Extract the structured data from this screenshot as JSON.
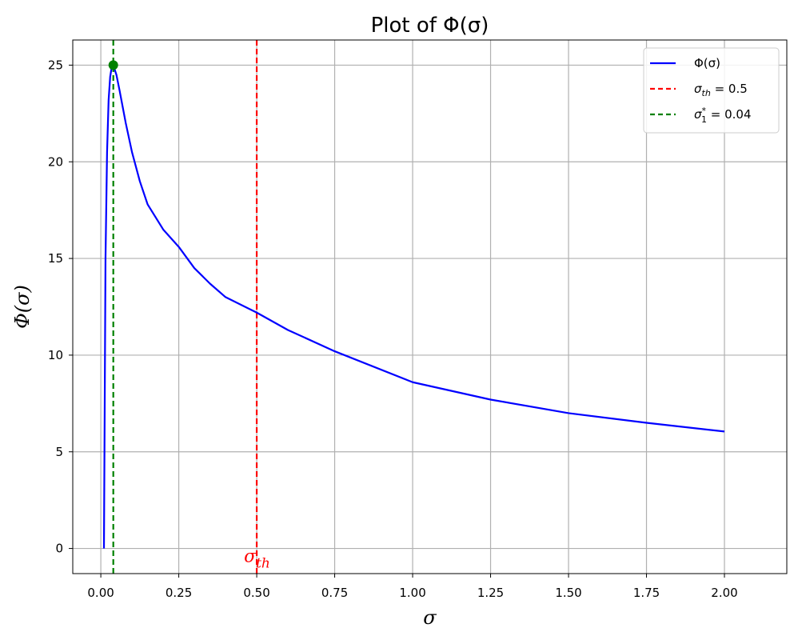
{
  "chart_data": {
    "type": "line",
    "title": "Plot of Φ(σ)",
    "xlabel": "σ",
    "ylabel": "Φ(σ)",
    "xlim": [
      -0.09,
      2.2
    ],
    "ylim": [
      -1.3,
      26.3
    ],
    "grid": true,
    "legend_position": "top-right",
    "x_ticks": [
      0.0,
      0.25,
      0.5,
      0.75,
      1.0,
      1.25,
      1.5,
      1.75,
      2.0
    ],
    "x_tick_labels": [
      "0.00",
      "0.25",
      "0.50",
      "0.75",
      "1.00",
      "1.25",
      "1.50",
      "1.75",
      "2.00"
    ],
    "y_ticks": [
      0,
      5,
      10,
      15,
      20,
      25
    ],
    "y_tick_labels": [
      "0",
      "5",
      "10",
      "15",
      "20",
      "25"
    ],
    "series": [
      {
        "name": "Φ(σ)",
        "color": "#0000ff",
        "style": "solid",
        "x": [
          0.01,
          0.015,
          0.02,
          0.025,
          0.03,
          0.035,
          0.04,
          0.05,
          0.06,
          0.08,
          0.1,
          0.125,
          0.15,
          0.2,
          0.25,
          0.3,
          0.35,
          0.4,
          0.5,
          0.6,
          0.75,
          1.0,
          1.25,
          1.5,
          1.75,
          2.0
        ],
        "y": [
          0.0,
          15.0,
          20.5,
          23.2,
          24.4,
          24.9,
          25.0,
          24.5,
          23.7,
          22.0,
          20.5,
          19.0,
          17.8,
          16.5,
          15.6,
          14.5,
          13.7,
          13.0,
          12.2,
          11.3,
          10.2,
          8.6,
          7.7,
          7.0,
          6.5,
          6.05
        ]
      }
    ],
    "vlines": [
      {
        "name": "σth = 0.5",
        "x": 0.5,
        "color": "#ff0000",
        "style": "dashed"
      },
      {
        "name": "σ1* = 0.04",
        "x": 0.04,
        "color": "#008000",
        "style": "dashed"
      }
    ],
    "marker": {
      "x": 0.04,
      "y": 25,
      "color": "#008000"
    },
    "annotation": {
      "text": "σth",
      "x": 0.5,
      "y": 0,
      "color": "#ff0000"
    },
    "legend": [
      {
        "main": "Φ(σ)",
        "sub": "",
        "sup": "",
        "tail": "",
        "color": "#0000ff",
        "style": "solid"
      },
      {
        "main": "σ",
        "sub": "th",
        "sup": "",
        "tail": " = 0.5",
        "color": "#ff0000",
        "style": "dashed"
      },
      {
        "main": "σ",
        "sub": "1",
        "sup": "*",
        "tail": " = 0.04",
        "color": "#008000",
        "style": "dashed"
      }
    ]
  }
}
